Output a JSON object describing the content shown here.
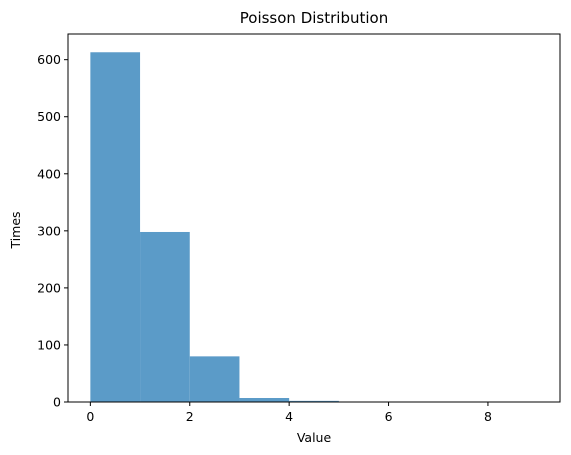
{
  "chart_data": {
    "type": "bar",
    "title": "Poisson Distribution",
    "xlabel": "Value",
    "ylabel": "Times",
    "bins": [
      {
        "x0": 0,
        "x1": 1,
        "value": 613
      },
      {
        "x0": 1,
        "x1": 2,
        "value": 298
      },
      {
        "x0": 2,
        "x1": 3,
        "value": 80
      },
      {
        "x0": 3,
        "x1": 4,
        "value": 7
      },
      {
        "x0": 4,
        "x1": 5,
        "value": 2
      },
      {
        "x0": 5,
        "x1": 6,
        "value": 0
      },
      {
        "x0": 6,
        "x1": 7,
        "value": 0
      },
      {
        "x0": 7,
        "x1": 8,
        "value": 0
      },
      {
        "x0": 8,
        "x1": 9,
        "value": 0
      }
    ],
    "xlim": [
      -0.45,
      9.45
    ],
    "ylim": [
      0,
      645
    ],
    "xticks": [
      0,
      2,
      4,
      6,
      8
    ],
    "yticks": [
      0,
      100,
      200,
      300,
      400,
      500,
      600
    ],
    "grid": false,
    "bar_color": "#5b9bc8",
    "legend": "none"
  }
}
